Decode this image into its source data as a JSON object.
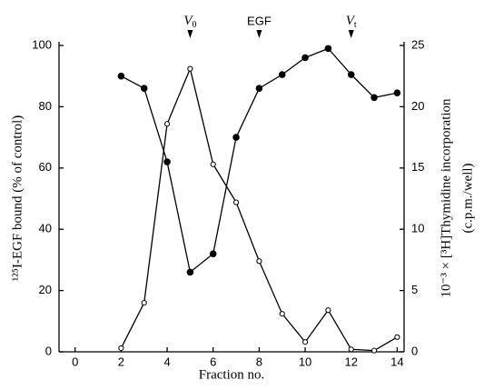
{
  "chart_data": {
    "type": "line",
    "x_label": "Fraction no.",
    "y_label": "¹²⁵I-EGF bound (% of control)",
    "y2_label_lines": [
      "10⁻³ × [³H]Thymidine incorporation",
      "(c.p.m./well)"
    ],
    "x": [
      2,
      3,
      4,
      5,
      6,
      7,
      8,
      9,
      10,
      11,
      12,
      13,
      14
    ],
    "series": [
      {
        "name": "¹²⁵I-EGF bound",
        "color": "#000000",
        "marker": "filled",
        "axis": "y",
        "values": [
          90,
          86,
          62,
          26,
          32,
          70,
          86,
          90.5,
          96,
          99,
          90.5,
          83,
          84.5
        ]
      },
      {
        "name": "[³H]Thymidine incorporation",
        "color": "#000000",
        "marker": "open",
        "axis": "y2",
        "values": [
          0.3,
          4,
          18.6,
          23.1,
          15.3,
          12.2,
          7.4,
          3.1,
          0.8,
          3.4,
          0.2,
          0.1,
          1.2
        ]
      }
    ],
    "annotations": [
      {
        "label": "V",
        "subscript": "0",
        "x": 5
      },
      {
        "label": "EGF",
        "x": 8
      },
      {
        "label": "V",
        "subscript": "t",
        "x": 12
      }
    ],
    "xlim": [
      -0.7,
      14.3
    ],
    "xticks": [
      0,
      2,
      4,
      6,
      8,
      10,
      12,
      14
    ],
    "ylim": [
      0,
      100
    ],
    "yticks": [
      0,
      20,
      40,
      60,
      80,
      100
    ],
    "y2lim": [
      0,
      25
    ],
    "y2ticks": [
      0,
      5,
      10,
      15,
      20,
      25
    ],
    "grid": false
  }
}
